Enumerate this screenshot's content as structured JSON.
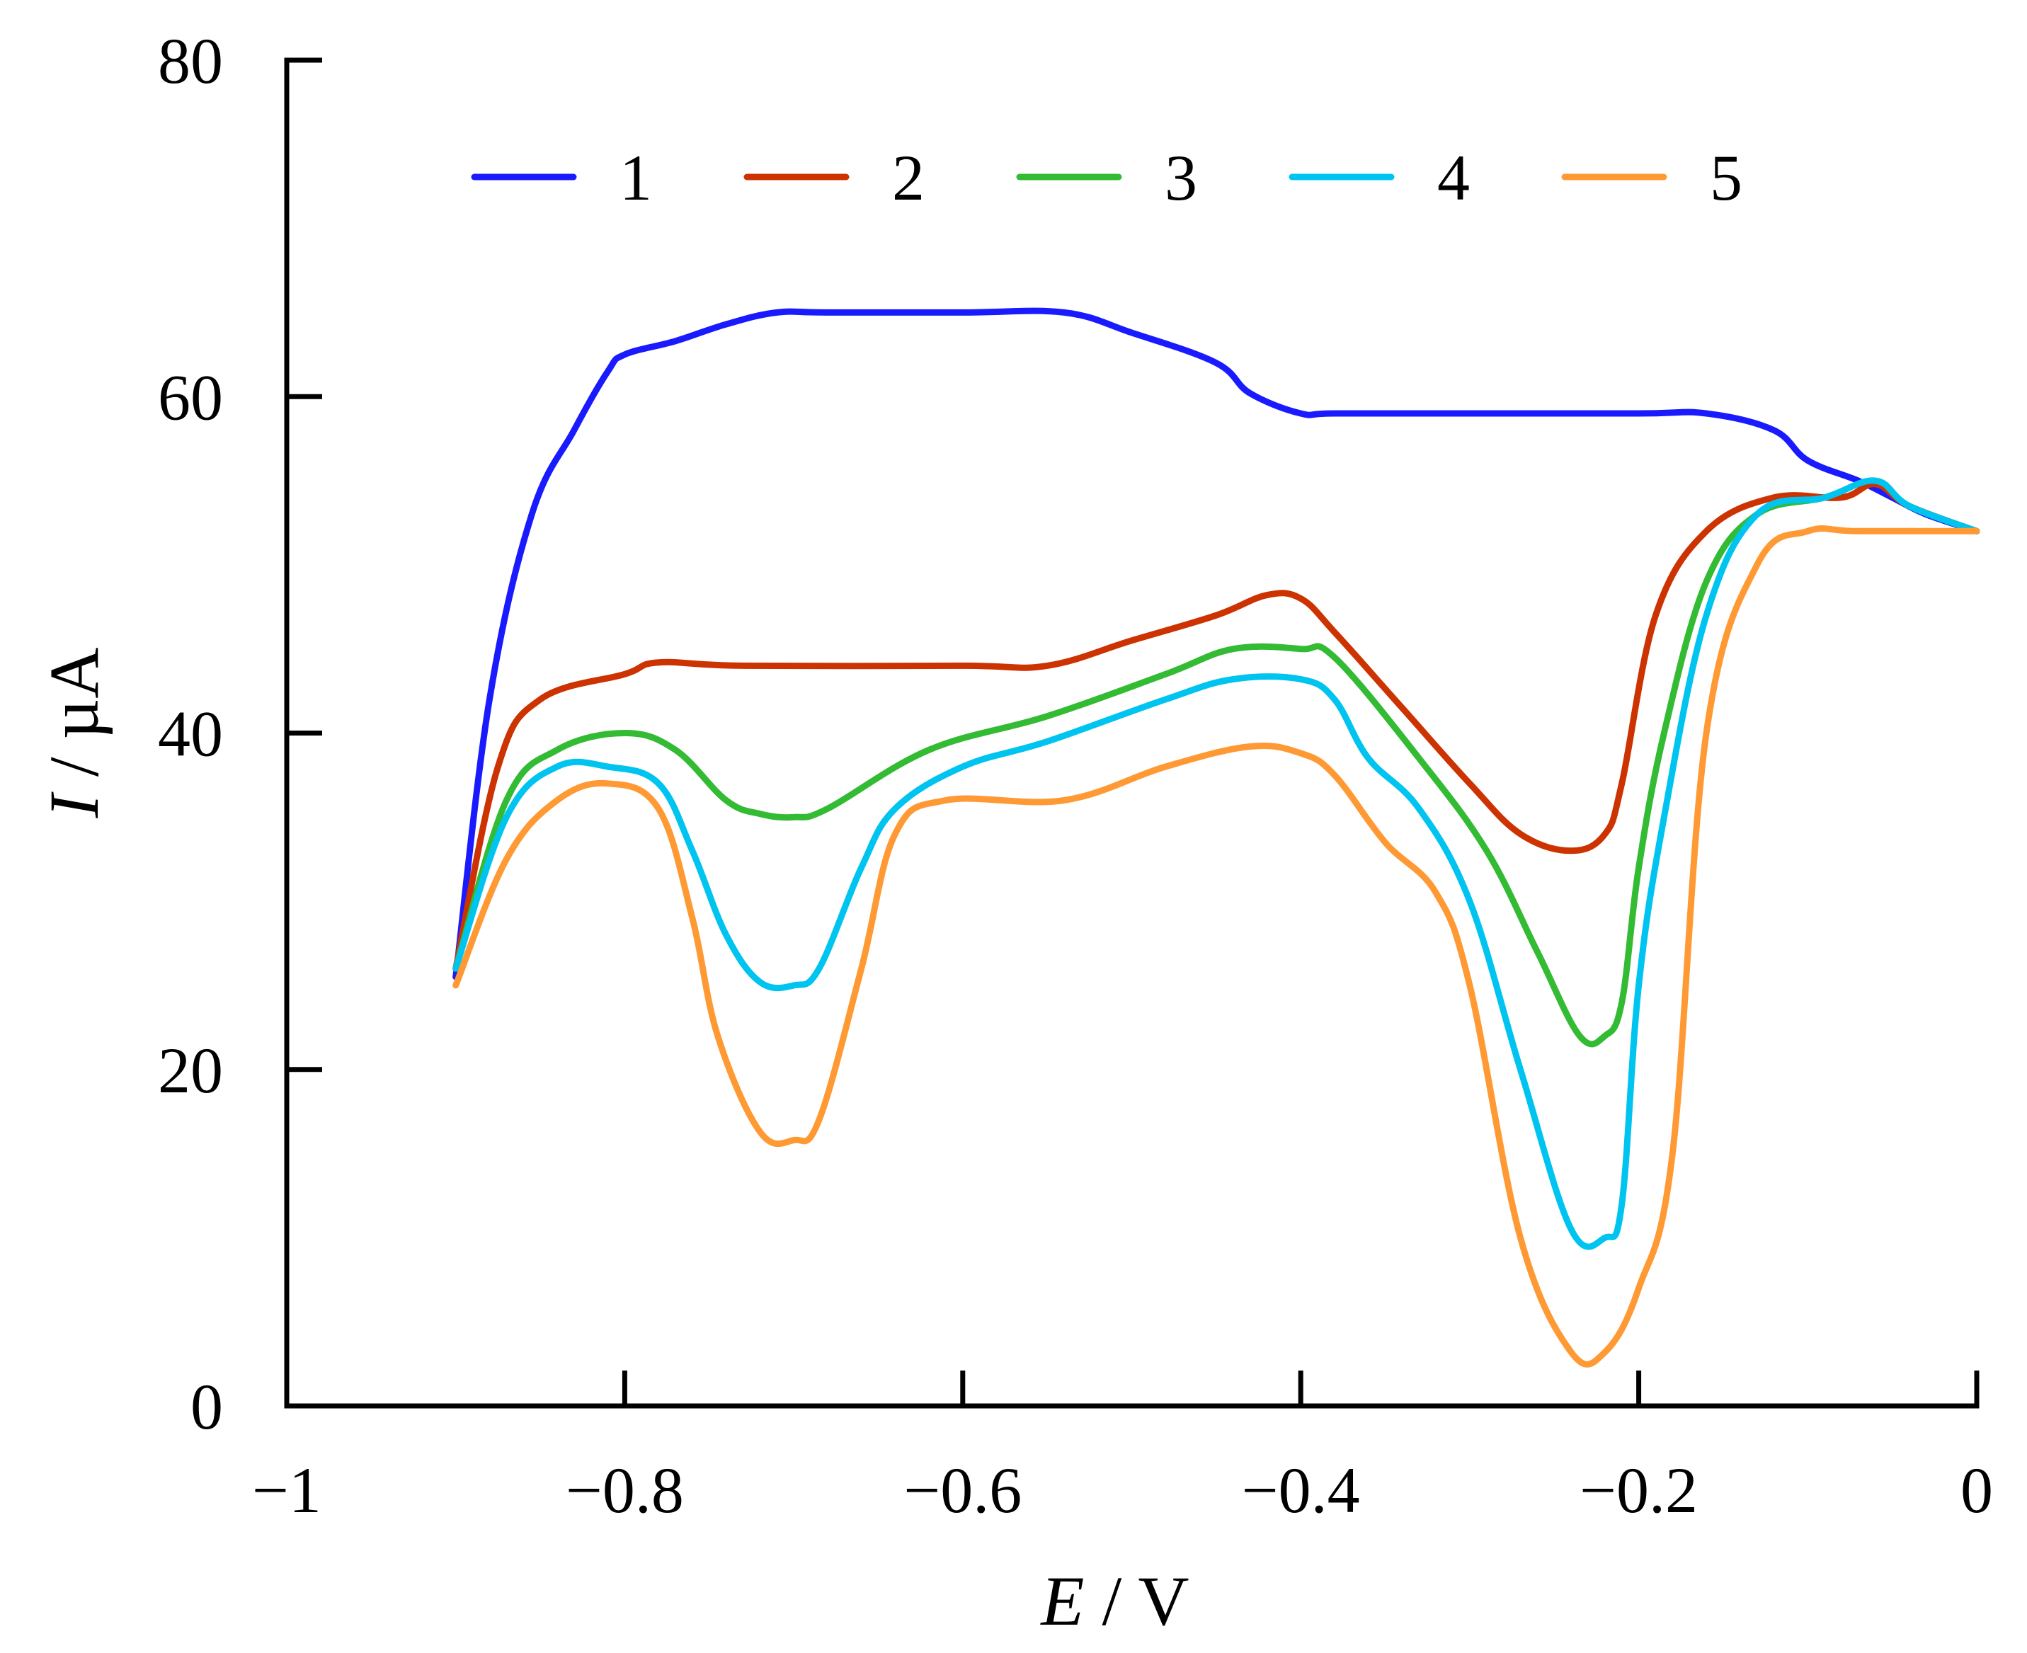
{
  "chart_data": {
    "type": "line",
    "xlabel": {
      "var": "E",
      "unit": " / V"
    },
    "ylabel": {
      "var": "I",
      "unit": " / µA"
    },
    "xlim": [
      -1,
      0
    ],
    "ylim": [
      0,
      80
    ],
    "x_ticks": [
      -1,
      -0.8,
      -0.6,
      -0.4,
      -0.2,
      0
    ],
    "x_tick_labels": [
      "−1",
      "−0.8",
      "−0.6",
      "−0.4",
      "−0.2",
      "0"
    ],
    "y_ticks": [
      0,
      20,
      40,
      60,
      80
    ],
    "y_tick_labels": [
      "0",
      "20",
      "40",
      "60",
      "80"
    ],
    "grid": false,
    "legend_position": "top",
    "series": [
      {
        "name": "1",
        "color": "#1a1aff",
        "points": [
          [
            -0.9,
            25.5
          ],
          [
            -0.88,
            42
          ],
          [
            -0.855,
            53
          ],
          [
            -0.83,
            58
          ],
          [
            -0.81,
            61.5
          ],
          [
            -0.8,
            62.5
          ],
          [
            -0.77,
            63.3
          ],
          [
            -0.74,
            64.3
          ],
          [
            -0.71,
            65
          ],
          [
            -0.68,
            65
          ],
          [
            -0.6,
            65
          ],
          [
            -0.54,
            65
          ],
          [
            -0.5,
            63.8
          ],
          [
            -0.45,
            62
          ],
          [
            -0.43,
            60.2
          ],
          [
            -0.4,
            59
          ],
          [
            -0.38,
            59
          ],
          [
            -0.3,
            59
          ],
          [
            -0.2,
            59
          ],
          [
            -0.16,
            59
          ],
          [
            -0.12,
            58
          ],
          [
            -0.1,
            56.2
          ],
          [
            -0.07,
            55
          ],
          [
            -0.05,
            54
          ],
          [
            -0.03,
            53
          ],
          [
            0,
            52
          ]
        ]
      },
      {
        "name": "2",
        "color": "#cc3300",
        "points": [
          [
            -0.9,
            26
          ],
          [
            -0.875,
            38
          ],
          [
            -0.85,
            42
          ],
          [
            -0.8,
            43.5
          ],
          [
            -0.78,
            44.2
          ],
          [
            -0.73,
            44
          ],
          [
            -0.6,
            44
          ],
          [
            -0.55,
            44
          ],
          [
            -0.5,
            45.5
          ],
          [
            -0.45,
            47
          ],
          [
            -0.42,
            48.2
          ],
          [
            -0.4,
            48
          ],
          [
            -0.38,
            46
          ],
          [
            -0.34,
            41.5
          ],
          [
            -0.3,
            37
          ],
          [
            -0.27,
            34
          ],
          [
            -0.24,
            33
          ],
          [
            -0.22,
            34
          ],
          [
            -0.21,
            37
          ],
          [
            -0.19,
            47
          ],
          [
            -0.16,
            52
          ],
          [
            -0.12,
            54
          ],
          [
            -0.08,
            54
          ],
          [
            -0.06,
            54.8
          ],
          [
            -0.04,
            53.5
          ],
          [
            0,
            52
          ]
        ]
      },
      {
        "name": "3",
        "color": "#33bb33",
        "points": [
          [
            -0.9,
            26
          ],
          [
            -0.87,
            36
          ],
          [
            -0.84,
            39
          ],
          [
            -0.8,
            40
          ],
          [
            -0.77,
            39
          ],
          [
            -0.74,
            36
          ],
          [
            -0.72,
            35.2
          ],
          [
            -0.7,
            35
          ],
          [
            -0.68,
            35.5
          ],
          [
            -0.62,
            39
          ],
          [
            -0.55,
            41
          ],
          [
            -0.48,
            43.5
          ],
          [
            -0.44,
            45
          ],
          [
            -0.4,
            45
          ],
          [
            -0.38,
            44.5
          ],
          [
            -0.33,
            38.5
          ],
          [
            -0.29,
            33
          ],
          [
            -0.26,
            27
          ],
          [
            -0.235,
            22
          ],
          [
            -0.22,
            22
          ],
          [
            -0.21,
            24
          ],
          [
            -0.2,
            32
          ],
          [
            -0.185,
            40
          ],
          [
            -0.16,
            49
          ],
          [
            -0.13,
            53
          ],
          [
            -0.09,
            54
          ],
          [
            -0.06,
            55
          ],
          [
            -0.04,
            53.5
          ],
          [
            0,
            52
          ]
        ]
      },
      {
        "name": "4",
        "color": "#00c4f0",
        "points": [
          [
            -0.9,
            26
          ],
          [
            -0.87,
            35
          ],
          [
            -0.84,
            38
          ],
          [
            -0.81,
            38
          ],
          [
            -0.78,
            37
          ],
          [
            -0.76,
            33
          ],
          [
            -0.74,
            28
          ],
          [
            -0.72,
            25.2
          ],
          [
            -0.7,
            25
          ],
          [
            -0.685,
            26
          ],
          [
            -0.66,
            32
          ],
          [
            -0.64,
            35.5
          ],
          [
            -0.6,
            38
          ],
          [
            -0.55,
            39.5
          ],
          [
            -0.48,
            42
          ],
          [
            -0.44,
            43.2
          ],
          [
            -0.4,
            43.2
          ],
          [
            -0.38,
            42
          ],
          [
            -0.36,
            38.5
          ],
          [
            -0.33,
            35.5
          ],
          [
            -0.3,
            30
          ],
          [
            -0.27,
            20
          ],
          [
            -0.24,
            10.5
          ],
          [
            -0.22,
            10
          ],
          [
            -0.21,
            12
          ],
          [
            -0.2,
            25
          ],
          [
            -0.185,
            35
          ],
          [
            -0.16,
            47
          ],
          [
            -0.13,
            53
          ],
          [
            -0.09,
            54
          ],
          [
            -0.06,
            55
          ],
          [
            -0.04,
            53.5
          ],
          [
            0,
            52
          ]
        ]
      },
      {
        "name": "5",
        "color": "#ff9933",
        "points": [
          [
            -0.9,
            25
          ],
          [
            -0.87,
            32.5
          ],
          [
            -0.84,
            36
          ],
          [
            -0.81,
            37
          ],
          [
            -0.78,
            35.5
          ],
          [
            -0.76,
            29
          ],
          [
            -0.745,
            22
          ],
          [
            -0.72,
            16.3
          ],
          [
            -0.7,
            15.8
          ],
          [
            -0.685,
            17
          ],
          [
            -0.66,
            26
          ],
          [
            -0.64,
            34
          ],
          [
            -0.61,
            36
          ],
          [
            -0.54,
            36
          ],
          [
            -0.48,
            38
          ],
          [
            -0.43,
            39.2
          ],
          [
            -0.4,
            38.8
          ],
          [
            -0.38,
            37.5
          ],
          [
            -0.35,
            33.5
          ],
          [
            -0.32,
            30.5
          ],
          [
            -0.3,
            25
          ],
          [
            -0.27,
            10
          ],
          [
            -0.24,
            3.2
          ],
          [
            -0.22,
            3.2
          ],
          [
            -0.2,
            7
          ],
          [
            -0.18,
            15
          ],
          [
            -0.16,
            40
          ],
          [
            -0.13,
            50
          ],
          [
            -0.1,
            52
          ],
          [
            -0.07,
            52
          ],
          [
            0,
            52
          ]
        ]
      }
    ]
  }
}
